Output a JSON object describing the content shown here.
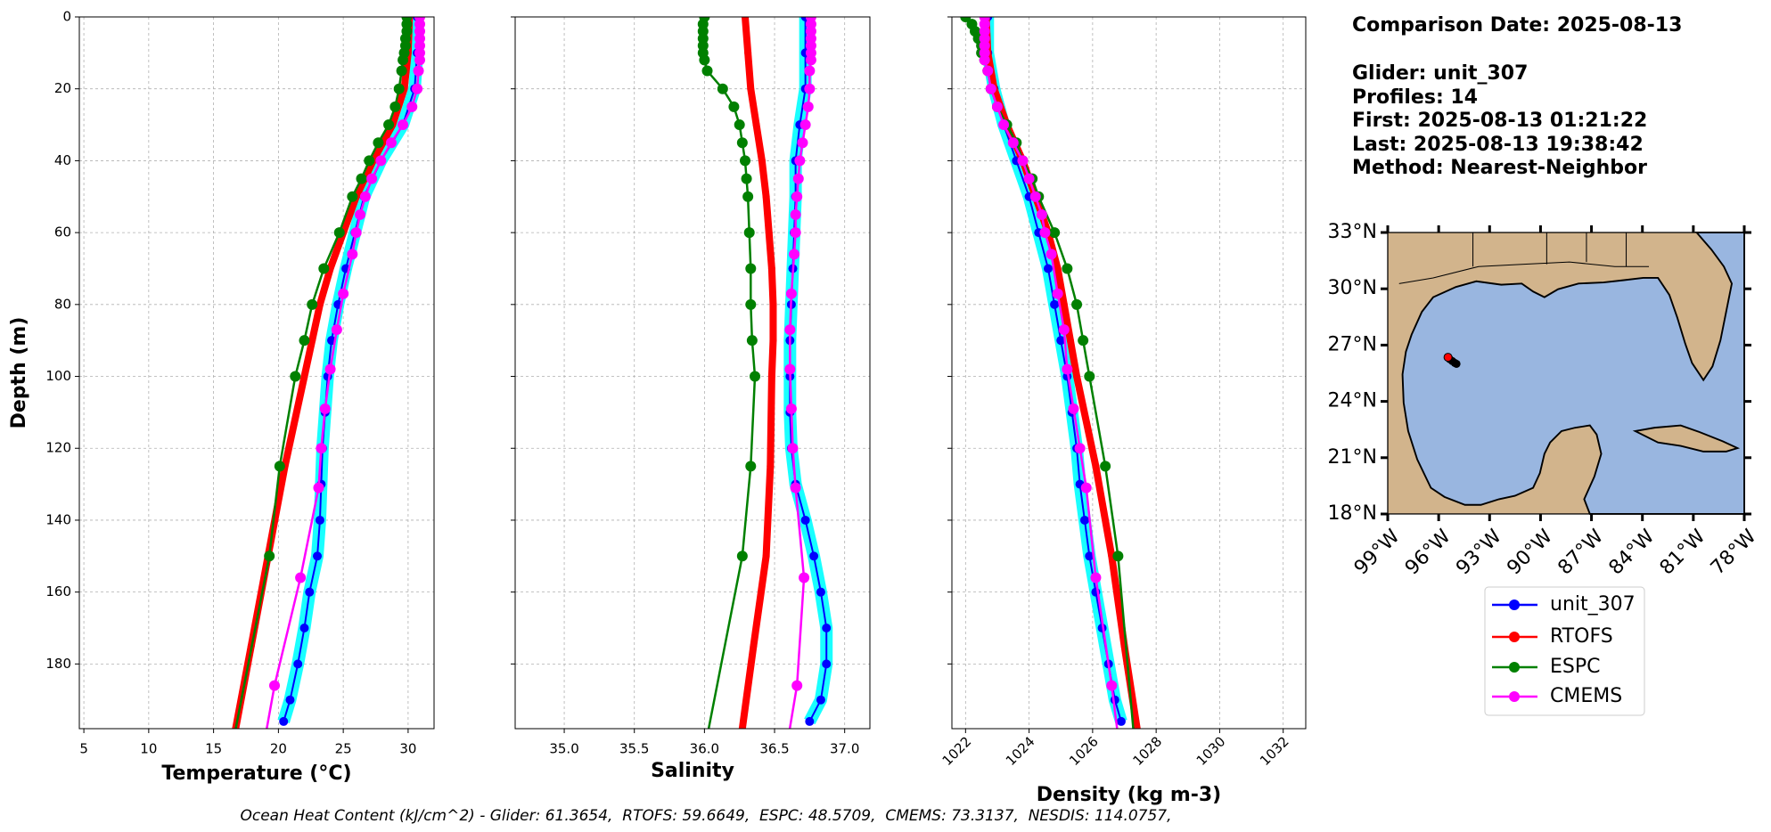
{
  "chart_data": [
    {
      "type": "line",
      "xlabel": "Temperature (°C)",
      "ylabel": "Depth (m)",
      "xlim": [
        4.65,
        32.0
      ],
      "xticks": [
        5,
        10,
        15,
        20,
        25,
        30
      ],
      "ylim": [
        198,
        0
      ],
      "yticks": [
        0,
        20,
        40,
        60,
        80,
        100,
        120,
        140,
        160,
        180
      ],
      "show_ytick_labels": true,
      "xtick_rotation": 0,
      "grid": true,
      "series": [
        {
          "name": "unit_307",
          "color": "#0000ff",
          "y": [
            0,
            10,
            20,
            30,
            40,
            50,
            60,
            70,
            80,
            90,
            100,
            110,
            120,
            130,
            140,
            150,
            160,
            170,
            180,
            190,
            196
          ],
          "x": [
            30.7,
            30.7,
            30.5,
            29.6,
            27.9,
            26.6,
            25.9,
            25.2,
            24.6,
            24.1,
            23.8,
            23.6,
            23.4,
            23.3,
            23.2,
            23.0,
            22.4,
            22.0,
            21.5,
            20.9,
            20.4
          ]
        },
        {
          "name": "RTOFS",
          "color": "#ff0000",
          "y": [
            0,
            10,
            20,
            30,
            40,
            50,
            60,
            70,
            80,
            90,
            100,
            125,
            150,
            175,
            198
          ],
          "x": [
            30.1,
            30.0,
            29.7,
            28.8,
            27.3,
            26.0,
            25.0,
            24.0,
            23.2,
            22.6,
            22.0,
            20.5,
            19.2,
            17.9,
            16.7
          ]
        },
        {
          "name": "ESPC",
          "color": "#008000",
          "y": [
            0,
            2,
            4,
            6,
            8,
            10,
            12,
            15,
            20,
            25,
            30,
            35,
            40,
            45,
            50,
            60,
            70,
            80,
            90,
            100,
            125,
            150,
            200
          ],
          "x": [
            29.9,
            29.9,
            29.9,
            29.8,
            29.8,
            29.7,
            29.6,
            29.5,
            29.3,
            29.0,
            28.5,
            27.7,
            27.0,
            26.4,
            25.7,
            24.7,
            23.5,
            22.6,
            22.0,
            21.3,
            20.1,
            19.3,
            16.6
          ]
        },
        {
          "name": "CMEMS",
          "color": "#ff00ff",
          "y": [
            0,
            2,
            4,
            6,
            8,
            10,
            12,
            15,
            20,
            25,
            30,
            35,
            40,
            45,
            50,
            55,
            60,
            66,
            77,
            87,
            98,
            109,
            120,
            131,
            156,
            186,
            200
          ],
          "x": [
            30.9,
            30.9,
            30.9,
            30.9,
            30.9,
            30.9,
            30.9,
            30.8,
            30.7,
            30.3,
            29.6,
            28.7,
            27.9,
            27.2,
            26.7,
            26.3,
            26.0,
            25.7,
            25.0,
            24.5,
            24.0,
            23.6,
            23.3,
            23.1,
            21.7,
            19.7,
            19.0
          ]
        }
      ]
    },
    {
      "type": "line",
      "xlabel": "Salinity",
      "xlim": [
        34.65,
        37.18
      ],
      "xticks": [
        {
          "value": 35,
          "label": "35.0"
        },
        35.5,
        {
          "value": 36,
          "label": "36.0"
        },
        36.5,
        {
          "value": 37,
          "label": "37.0"
        }
      ],
      "ylim": [
        198,
        0
      ],
      "yticks": [
        0,
        20,
        40,
        60,
        80,
        100,
        120,
        140,
        160,
        180
      ],
      "show_ytick_labels": false,
      "xtick_rotation": 0,
      "grid": true,
      "series": [
        {
          "name": "unit_307",
          "color": "#0000ff",
          "y": [
            0,
            10,
            20,
            30,
            40,
            50,
            60,
            70,
            80,
            90,
            100,
            110,
            120,
            130,
            140,
            150,
            160,
            170,
            180,
            190,
            196
          ],
          "x": [
            36.72,
            36.72,
            36.72,
            36.68,
            36.65,
            36.65,
            36.64,
            36.63,
            36.62,
            36.61,
            36.61,
            36.61,
            36.62,
            36.65,
            36.72,
            36.78,
            36.83,
            36.87,
            36.87,
            36.83,
            36.75
          ]
        },
        {
          "name": "RTOFS",
          "color": "#ff0000",
          "y": [
            0,
            10,
            20,
            30,
            40,
            50,
            60,
            70,
            80,
            90,
            100,
            125,
            150,
            175,
            198
          ],
          "x": [
            36.29,
            36.31,
            36.33,
            36.37,
            36.41,
            36.44,
            36.46,
            36.48,
            36.49,
            36.49,
            36.48,
            36.47,
            36.44,
            36.35,
            36.27
          ]
        },
        {
          "name": "ESPC",
          "color": "#008000",
          "y": [
            0,
            2,
            4,
            6,
            8,
            10,
            12,
            15,
            20,
            25,
            30,
            35,
            40,
            45,
            50,
            60,
            70,
            80,
            90,
            100,
            125,
            150,
            200
          ],
          "x": [
            36.0,
            35.99,
            35.99,
            35.99,
            35.99,
            35.99,
            36.0,
            36.02,
            36.13,
            36.21,
            36.25,
            36.27,
            36.29,
            36.3,
            36.31,
            36.32,
            36.33,
            36.33,
            36.34,
            36.36,
            36.33,
            36.27,
            36.02
          ]
        },
        {
          "name": "CMEMS",
          "color": "#ff00ff",
          "y": [
            0,
            2,
            4,
            6,
            8,
            10,
            12,
            15,
            20,
            25,
            30,
            35,
            40,
            45,
            50,
            55,
            60,
            66,
            77,
            87,
            98,
            109,
            120,
            131,
            156,
            186,
            200
          ],
          "x": [
            36.76,
            36.76,
            36.76,
            36.76,
            36.76,
            36.76,
            36.76,
            36.75,
            36.75,
            36.74,
            36.72,
            36.7,
            36.68,
            36.67,
            36.66,
            36.65,
            36.65,
            36.64,
            36.62,
            36.61,
            36.61,
            36.62,
            36.63,
            36.65,
            36.71,
            36.66,
            36.6
          ]
        }
      ]
    },
    {
      "type": "line",
      "xlabel": "Density (kg m-3)",
      "xlim": [
        1021.57,
        1032.71
      ],
      "xticks": [
        1022,
        1024,
        1026,
        1028,
        1030,
        1032
      ],
      "ylim": [
        198,
        0
      ],
      "yticks": [
        0,
        20,
        40,
        60,
        80,
        100,
        120,
        140,
        160,
        180
      ],
      "show_ytick_labels": false,
      "xtick_rotation": 45,
      "grid": true,
      "series": [
        {
          "name": "unit_307",
          "color": "#0000ff",
          "y": [
            0,
            10,
            20,
            30,
            40,
            50,
            60,
            70,
            80,
            90,
            100,
            110,
            120,
            130,
            140,
            150,
            160,
            170,
            180,
            190,
            196
          ],
          "x": [
            1022.7,
            1022.7,
            1022.9,
            1023.2,
            1023.6,
            1024.0,
            1024.3,
            1024.6,
            1024.8,
            1025.0,
            1025.2,
            1025.35,
            1025.5,
            1025.6,
            1025.75,
            1025.9,
            1026.1,
            1026.3,
            1026.5,
            1026.7,
            1026.9
          ]
        },
        {
          "name": "RTOFS",
          "color": "#ff0000",
          "y": [
            0,
            10,
            20,
            30,
            40,
            50,
            60,
            70,
            80,
            90,
            100,
            125,
            150,
            175,
            198
          ],
          "x": [
            1022.65,
            1022.7,
            1022.9,
            1023.3,
            1023.8,
            1024.2,
            1024.6,
            1024.9,
            1025.1,
            1025.3,
            1025.5,
            1026.1,
            1026.6,
            1027.0,
            1027.4
          ]
        },
        {
          "name": "ESPC",
          "color": "#008000",
          "y": [
            0,
            2,
            4,
            6,
            8,
            10,
            12,
            15,
            20,
            25,
            30,
            35,
            40,
            45,
            50,
            60,
            70,
            80,
            90,
            100,
            125,
            150,
            200
          ],
          "x": [
            1022.0,
            1022.2,
            1022.3,
            1022.4,
            1022.5,
            1022.5,
            1022.6,
            1022.7,
            1022.8,
            1023.0,
            1023.3,
            1023.6,
            1023.8,
            1024.1,
            1024.3,
            1024.8,
            1025.2,
            1025.5,
            1025.7,
            1025.9,
            1026.4,
            1026.8,
            1027.3
          ]
        },
        {
          "name": "CMEMS",
          "color": "#ff00ff",
          "y": [
            0,
            2,
            4,
            6,
            8,
            10,
            12,
            15,
            20,
            25,
            30,
            35,
            40,
            45,
            50,
            55,
            60,
            66,
            77,
            87,
            98,
            109,
            120,
            131,
            156,
            186,
            200
          ],
          "x": [
            1022.6,
            1022.6,
            1022.6,
            1022.6,
            1022.6,
            1022.6,
            1022.6,
            1022.7,
            1022.8,
            1023.0,
            1023.2,
            1023.5,
            1023.8,
            1024.0,
            1024.2,
            1024.4,
            1024.5,
            1024.7,
            1024.9,
            1025.1,
            1025.2,
            1025.4,
            1025.6,
            1025.8,
            1026.1,
            1026.6,
            1026.8
          ]
        }
      ]
    }
  ],
  "info": [
    "Comparison Date: 2025-08-13",
    "Glider: unit_307",
    "Profiles: 14",
    "First: 2025-08-13 01:21:22",
    "Last: 2025-08-13 19:38:42",
    "Method: Nearest-Neighbor"
  ],
  "map": {
    "xlim": [
      -99,
      -78
    ],
    "ylim": [
      18,
      33
    ],
    "xticks": [
      {
        "value": -99,
        "label": "99°W"
      },
      {
        "value": -96,
        "label": "96°W"
      },
      {
        "value": -93,
        "label": "93°W"
      },
      {
        "value": -90,
        "label": "90°W"
      },
      {
        "value": -87,
        "label": "87°W"
      },
      {
        "value": -84,
        "label": "84°W"
      },
      {
        "value": -81,
        "label": "81°W"
      },
      {
        "value": -78,
        "label": "78°W"
      }
    ],
    "yticks": [
      {
        "value": 18,
        "label": "18°N"
      },
      {
        "value": 21,
        "label": "21°N"
      },
      {
        "value": 24,
        "label": "24°N"
      },
      {
        "value": 27,
        "label": "27°N"
      },
      {
        "value": 30,
        "label": "30°N"
      },
      {
        "value": 33,
        "label": "33°N"
      }
    ],
    "track": {
      "color": "#000000",
      "lon": [
        -95.35,
        -95.2,
        -95.05,
        -94.95
      ],
      "lat": [
        26.25,
        26.15,
        26.05,
        26.0
      ]
    },
    "location": {
      "color": "#ff0000",
      "lon": -95.45,
      "lat": 26.35
    }
  },
  "footer": "Ocean Heat Content (kJ/cm^2) - Glider: 61.3654,  RTOFS: 59.6649,  ESPC: 48.5709,  CMEMS: 73.3137,  NESDIS: 114.0757,"
}
